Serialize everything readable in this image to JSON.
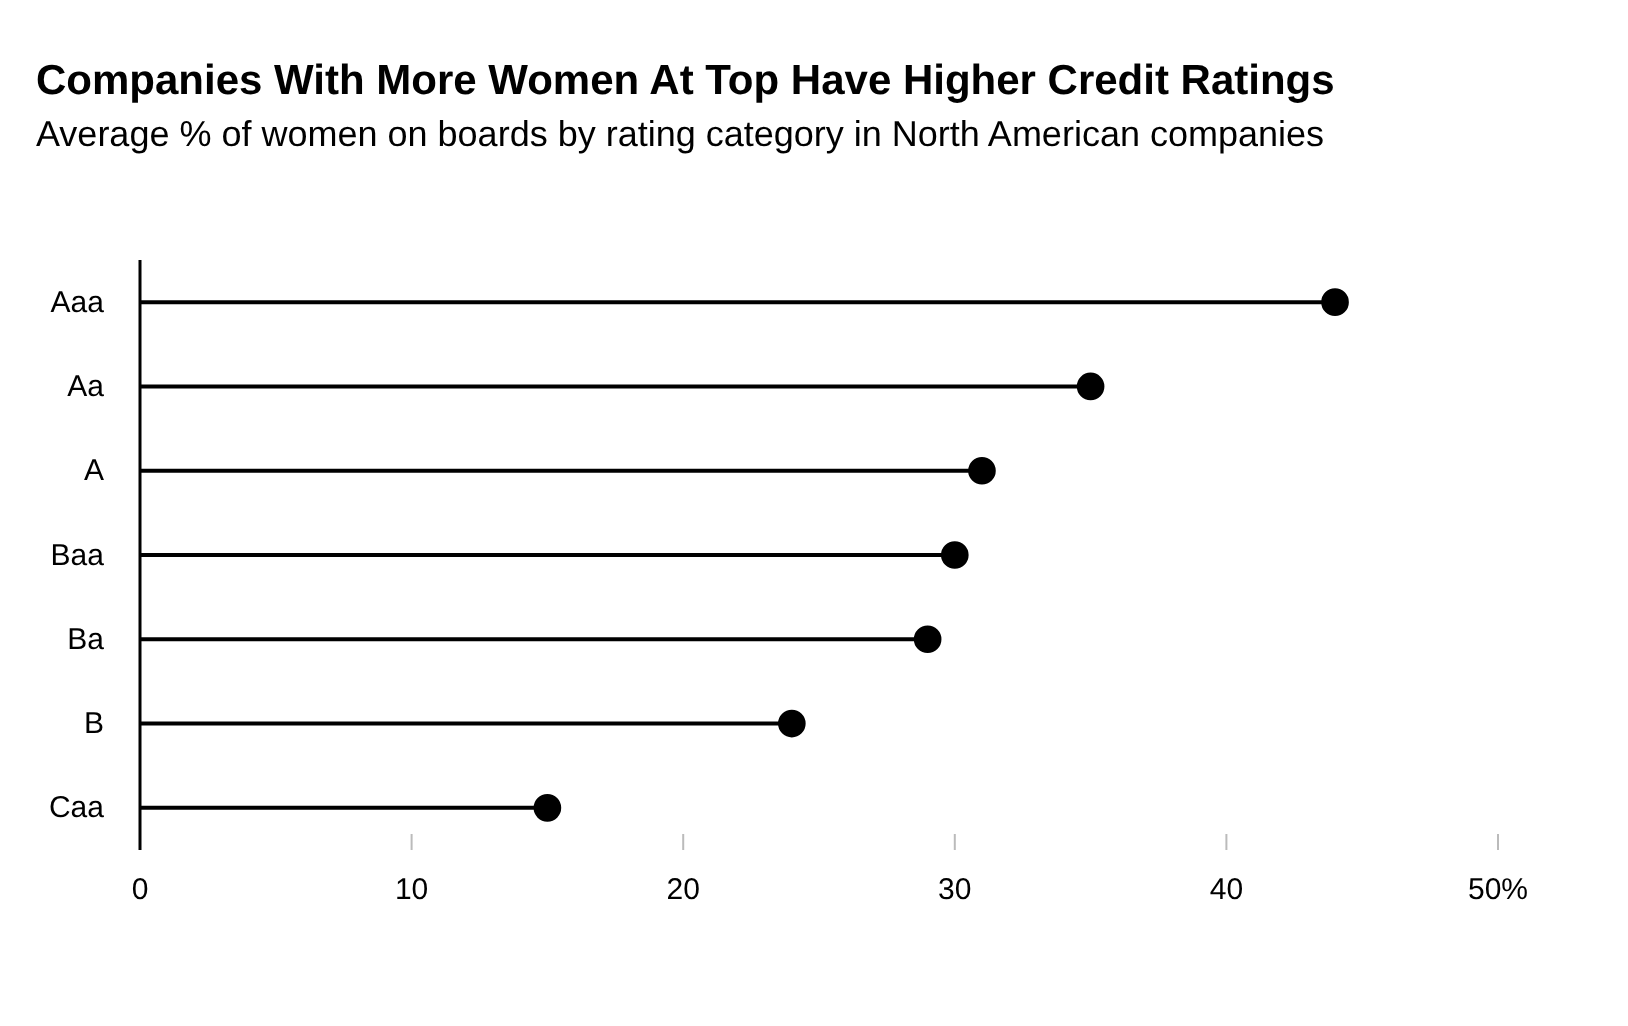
{
  "chart_data": {
    "type": "lollipop",
    "orientation": "horizontal",
    "title": "Companies With More Women At Top Have Higher Credit Ratings",
    "subtitle": "Average % of women on boards by rating category in North American companies",
    "categories": [
      "Aaa",
      "Aa",
      "A",
      "Baa",
      "Ba",
      "B",
      "Caa"
    ],
    "values": [
      44,
      35,
      31,
      30,
      29,
      24,
      15
    ],
    "color": "#000000",
    "xlim": [
      0,
      50
    ],
    "xticks": [
      0,
      10,
      20,
      30,
      40,
      {
        "value": 50,
        "label": "50%"
      }
    ],
    "grid": false,
    "marker": "circle"
  }
}
